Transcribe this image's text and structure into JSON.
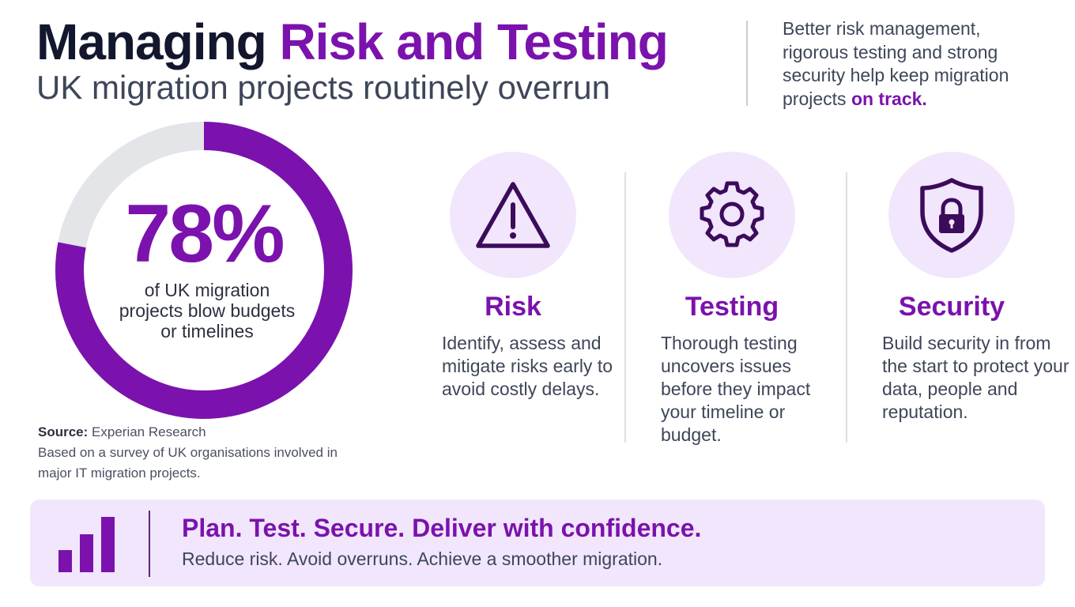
{
  "header": {
    "title_part1": "Managing ",
    "title_part2": "Risk and Testing",
    "subtitle": "UK migration projects routinely overrun",
    "note_text": "Better risk management, rigorous testing and strong security help keep migration projects ",
    "note_highlight": "on track."
  },
  "stat": {
    "value": "78%",
    "fraction": 0.78,
    "label": "of UK migration projects blow budgets or timelines",
    "source_label": "Source:",
    "source_name": "Experian Research",
    "source_note": "Based on a survey of UK organisations involved in major IT migration projects."
  },
  "pillars": [
    {
      "title": "Risk",
      "icon": "warning-triangle-icon",
      "text": "Identify, assess and mitigate risks early to avoid costly delays."
    },
    {
      "title": "Testing",
      "icon": "gear-icon",
      "text": "Thorough testing uncovers issues before they impact your timeline or budget."
    },
    {
      "title": "Security",
      "icon": "shield-lock-icon",
      "text": "Build security in from the start to protect your data, people and reputation."
    }
  ],
  "banner": {
    "icon": "bar-chart-icon",
    "headline": "Plan. Test. Secure. Deliver with confidence.",
    "tagline": "Reduce risk. Avoid overruns. Achieve a smoother migration."
  },
  "colors": {
    "accent": "#7b12ad",
    "title_dark": "#13172e",
    "track": "#e3e5e8",
    "tint": "#f1e6fb"
  }
}
